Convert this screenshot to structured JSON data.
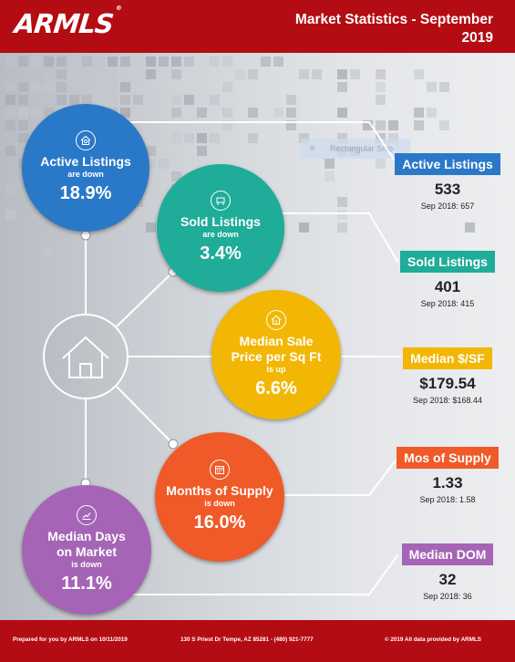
{
  "header": {
    "logo": "ARMLS",
    "logo_mark": "®",
    "title_line1": "Market Statistics - September",
    "title_line2": "2019"
  },
  "ghost_label": "Rectangular Snip",
  "circles": {
    "active": {
      "title": "Active Listings",
      "direction": "are down",
      "percent": "18.9%",
      "color": "#2a78c8",
      "icon": "house-search-icon"
    },
    "sold": {
      "title": "Sold Listings",
      "direction": "are down",
      "percent": "3.4%",
      "color": "#1fac98",
      "icon": "sold-sign-icon"
    },
    "median_price": {
      "title_line1": "Median Sale",
      "title_line2": "Price per Sq Ft",
      "direction": "is up",
      "percent": "6.6%",
      "color": "#f2b705",
      "icon": "house-dollar-icon"
    },
    "supply": {
      "title": "Months of Supply",
      "direction": "is down",
      "percent": "16.0%",
      "color": "#f05a28",
      "icon": "calendar-icon"
    },
    "dom": {
      "title_line1": "Median Days",
      "title_line2": "on Market",
      "direction": "is down",
      "percent": "11.1%",
      "color": "#a564b5",
      "icon": "chart-icon"
    }
  },
  "stats": {
    "active": {
      "label": "Active Listings",
      "value": "533",
      "previous": "Sep 2018: 657",
      "color": "#2a78c8"
    },
    "sold": {
      "label": "Sold Listings",
      "value": "401",
      "previous": "Sep 2018: 415",
      "color": "#1fac98"
    },
    "median_sf": {
      "label": "Median $/SF",
      "value": "$179.54",
      "previous": "Sep 2018: $168.44",
      "color": "#f2b705"
    },
    "supply": {
      "label": "Mos of Supply",
      "value": "1.33",
      "previous": "Sep 2018: 1.58",
      "color": "#f05a28"
    },
    "dom": {
      "label": "Median DOM",
      "value": "32",
      "previous": "Sep 2018: 36",
      "color": "#a564b5"
    }
  },
  "footer": {
    "prepared": "Prepared for you by ARMLS on 10/11/2019",
    "address": "130 S Priest Dr  Tempe, AZ 85281 - (480) 921-7777",
    "copyright": "© 2019 All data provided by ARMLS"
  }
}
